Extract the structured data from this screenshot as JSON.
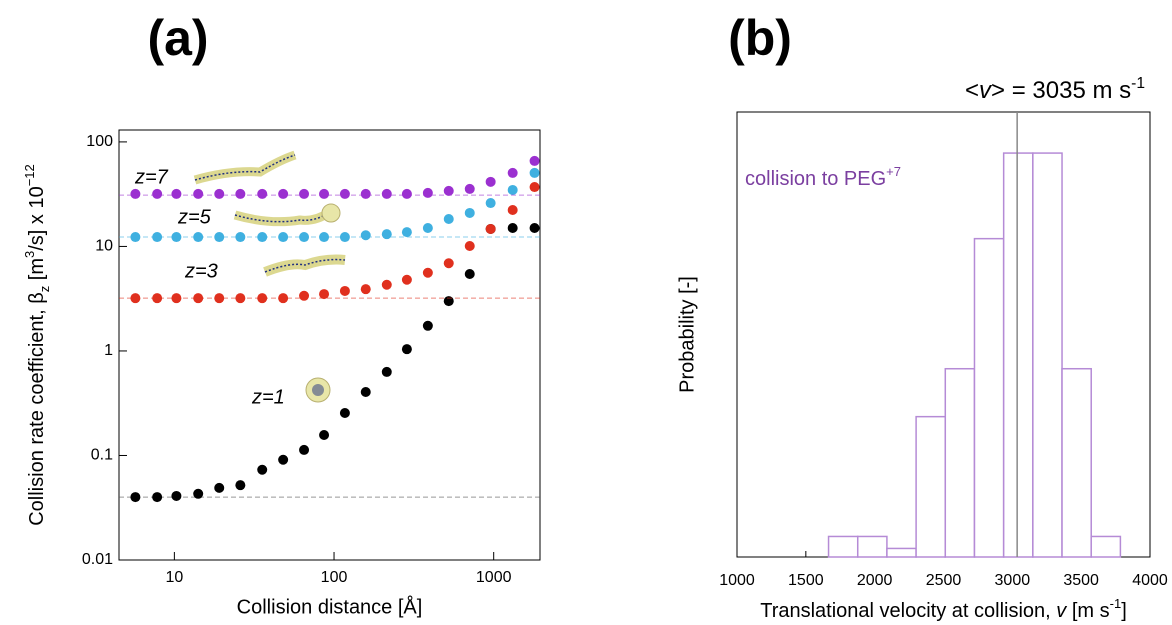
{
  "chart_data": [
    {
      "type": "scatter",
      "title": "(a)",
      "xlabel": "Collision distance [Å]",
      "ylabel_parts": [
        {
          "text": "Collision rate coefficient, β",
          "style": "normal"
        },
        {
          "text": "z",
          "style": "sub"
        },
        {
          "text": " [m",
          "style": "normal"
        },
        {
          "text": "3",
          "style": "sup"
        },
        {
          "text": "/s] x 10",
          "style": "normal"
        },
        {
          "text": "−12",
          "style": "sup"
        }
      ],
      "x": [
        5.7,
        7.8,
        10.3,
        14.1,
        19.1,
        25.9,
        35.5,
        48,
        64.9,
        86.6,
        117,
        158,
        214,
        286,
        387,
        523,
        708,
        957,
        1315,
        1803
      ],
      "series": [
        {
          "name": "z=1",
          "color": "#000000",
          "baseline": 0.04,
          "values": [
            0.04,
            0.04,
            0.041,
            0.043,
            0.049,
            0.052,
            0.073,
            0.091,
            0.113,
            0.157,
            0.255,
            0.405,
            0.63,
            1.04,
            1.74,
            3.0,
            5.45,
            14.7,
            15,
            15
          ]
        },
        {
          "name": "z=3",
          "color": "#e0301e",
          "baseline": 3.2,
          "values": [
            3.2,
            3.2,
            3.2,
            3.2,
            3.2,
            3.2,
            3.2,
            3.2,
            3.37,
            3.5,
            3.75,
            3.9,
            4.3,
            4.8,
            5.6,
            6.9,
            10.1,
            14.7,
            22.3,
            37
          ]
        },
        {
          "name": "z=5",
          "color": "#3fb0e0",
          "baseline": 12.3,
          "values": [
            12.3,
            12.3,
            12.3,
            12.3,
            12.3,
            12.3,
            12.3,
            12.3,
            12.3,
            12.3,
            12.3,
            12.8,
            13.1,
            13.7,
            15,
            18.3,
            20.9,
            26,
            34.7,
            50.5
          ]
        },
        {
          "name": "z=7",
          "color": "#9b30d0",
          "baseline": 31,
          "values": [
            31.8,
            31.8,
            31.8,
            31.8,
            31.8,
            31.8,
            31.8,
            31.8,
            31.8,
            31.8,
            31.8,
            31.8,
            31.8,
            31.8,
            32.5,
            34,
            35.5,
            41.5,
            50.5,
            65.8
          ]
        }
      ],
      "xlim": [
        4.5,
        1950
      ],
      "ylim": [
        0.01,
        130
      ],
      "xticks": [
        10,
        100,
        1000
      ],
      "yticks": [
        0.01,
        0.1,
        1,
        10,
        100
      ],
      "xscale": "log",
      "yscale": "log"
    },
    {
      "type": "histogram",
      "title": "(b)",
      "annotation_parts": [
        {
          "text": "<",
          "style": "normal"
        },
        {
          "text": "v",
          "style": "italic"
        },
        {
          "text": "> = 3035 m s",
          "style": "normal"
        },
        {
          "text": "-1",
          "style": "sup"
        }
      ],
      "mean": 3035,
      "mean_color": "#888888",
      "note_parts": [
        {
          "text": "collision to PEG",
          "style": "normal"
        },
        {
          "text": "+7",
          "style": "sup"
        }
      ],
      "note_color": "#7b3fa0",
      "xlabel_parts": [
        {
          "text": "Translational velocity at collision, ",
          "style": "normal"
        },
        {
          "text": "v",
          "style": "italic"
        },
        {
          "text": " [m s",
          "style": "normal"
        },
        {
          "text": "-1",
          "style": "sup"
        },
        {
          "text": "]",
          "style": "normal"
        }
      ],
      "ylabel": "Probability [-]",
      "bins": [
        1665,
        1877,
        2089,
        2301,
        2513,
        2725,
        2937,
        3149,
        3361,
        3573,
        3785
      ],
      "values": [
        0.012,
        0.012,
        0.005,
        0.082,
        0.11,
        0.186,
        0.236,
        0.236,
        0.11,
        0.012
      ],
      "color": "#b58bd6",
      "xlim": [
        1000,
        4000
      ],
      "ylim": [
        0,
        0.26
      ],
      "xticks": [
        1000,
        1500,
        2000,
        2500,
        3000,
        3500,
        4000
      ]
    }
  ]
}
